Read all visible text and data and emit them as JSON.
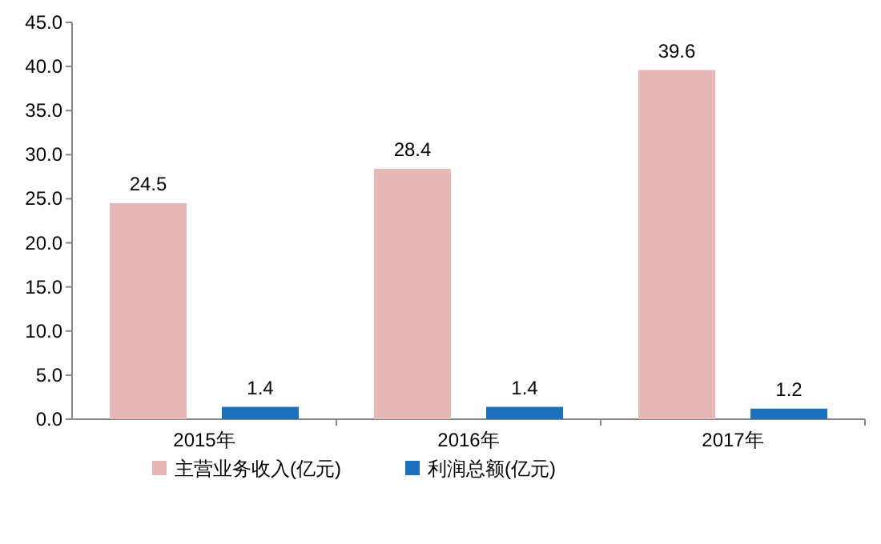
{
  "chart_data": {
    "type": "bar",
    "categories": [
      "2015年",
      "2016年",
      "2017年"
    ],
    "series": [
      {
        "name": "主营业务收入(亿元)",
        "color": "#e6b9b8",
        "values": [
          24.5,
          28.4,
          39.6
        ]
      },
      {
        "name": "利润总额(亿元)",
        "color": "#1f6fbf",
        "values": [
          1.4,
          1.4,
          1.2
        ]
      }
    ],
    "ylim": [
      0,
      45
    ],
    "yticks": [
      {
        "value": 0,
        "label": "0.0"
      },
      {
        "value": 5,
        "label": "5.0"
      },
      {
        "value": 10,
        "label": "10.0"
      },
      {
        "value": 15,
        "label": "15.0"
      },
      {
        "value": 20,
        "label": "20.0"
      },
      {
        "value": 25,
        "label": "25.0"
      },
      {
        "value": 30,
        "label": "30.0"
      },
      {
        "value": 35,
        "label": "35.0"
      },
      {
        "value": 40,
        "label": "40.0"
      },
      {
        "value": 45,
        "label": "45.0"
      }
    ],
    "data_labels": true,
    "grid": false,
    "legend": "bottom"
  }
}
